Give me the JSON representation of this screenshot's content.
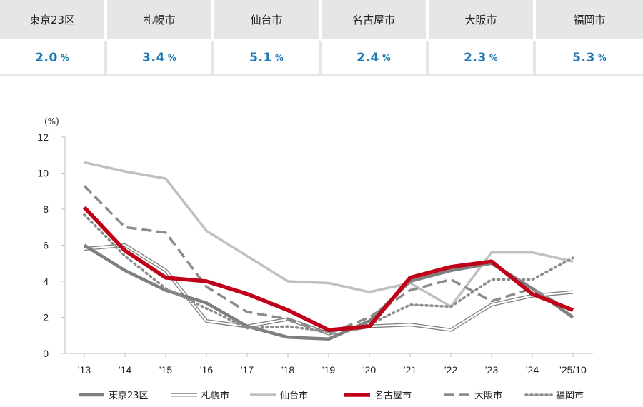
{
  "summary": [
    {
      "city": "東京23区",
      "value": "2.0",
      "unit": "%"
    },
    {
      "city": "札幌市",
      "value": "3.4",
      "unit": "%"
    },
    {
      "city": "仙台市",
      "value": "5.1",
      "unit": "%"
    },
    {
      "city": "名古屋市",
      "value": "2.4",
      "unit": "%"
    },
    {
      "city": "大阪市",
      "value": "2.3",
      "unit": "%"
    },
    {
      "city": "福岡市",
      "value": "5.3",
      "unit": "%"
    }
  ],
  "colors": {
    "summary_value": "#1f78b4",
    "header_bg": "#e6e6e6"
  },
  "chart_data": {
    "type": "line",
    "y_unit_label": "(%)",
    "ylim": [
      0,
      12
    ],
    "yticks": [
      0,
      2,
      4,
      6,
      8,
      10,
      12
    ],
    "x": [
      "'13",
      "'14",
      "'15",
      "'16",
      "'17",
      "'18",
      "'19",
      "'20",
      "'21",
      "'22",
      "'23",
      "'24",
      "'25/10"
    ],
    "grid": false,
    "legend_position": "bottom",
    "series": [
      {
        "name": "東京23区",
        "style": "solid-thick",
        "color": "#7f7f7f",
        "values": [
          6.0,
          4.6,
          3.5,
          2.8,
          1.5,
          0.9,
          0.8,
          1.8,
          4.0,
          4.6,
          5.0,
          3.6,
          2.0
        ]
      },
      {
        "name": "札幌市",
        "style": "double",
        "color": "#7f7f7f",
        "values": [
          5.8,
          6.0,
          4.6,
          1.8,
          1.5,
          1.9,
          1.1,
          1.5,
          1.6,
          1.3,
          2.7,
          3.2,
          3.4
        ]
      },
      {
        "name": "仙台市",
        "style": "solid-light",
        "color": "#c0c0c0",
        "values": [
          10.6,
          10.1,
          9.7,
          6.8,
          5.4,
          4.0,
          3.9,
          3.4,
          3.9,
          2.6,
          5.6,
          5.6,
          5.1
        ]
      },
      {
        "name": "名古屋市",
        "style": "solid-red",
        "color": "#c00018",
        "values": [
          8.1,
          5.7,
          4.2,
          4.0,
          3.3,
          2.4,
          1.3,
          1.5,
          4.2,
          4.8,
          5.1,
          3.3,
          2.4
        ]
      },
      {
        "name": "大阪市",
        "style": "dashed",
        "color": "#8c8c8c",
        "values": [
          9.3,
          7.0,
          6.7,
          3.7,
          2.3,
          1.9,
          1.1,
          2.0,
          3.5,
          4.1,
          2.9,
          3.6,
          2.3
        ]
      },
      {
        "name": "福岡市",
        "style": "dotted",
        "color": "#8c8c8c",
        "values": [
          7.7,
          5.4,
          3.6,
          2.5,
          1.4,
          1.5,
          1.2,
          1.6,
          2.7,
          2.6,
          4.1,
          4.1,
          5.3
        ]
      }
    ]
  }
}
